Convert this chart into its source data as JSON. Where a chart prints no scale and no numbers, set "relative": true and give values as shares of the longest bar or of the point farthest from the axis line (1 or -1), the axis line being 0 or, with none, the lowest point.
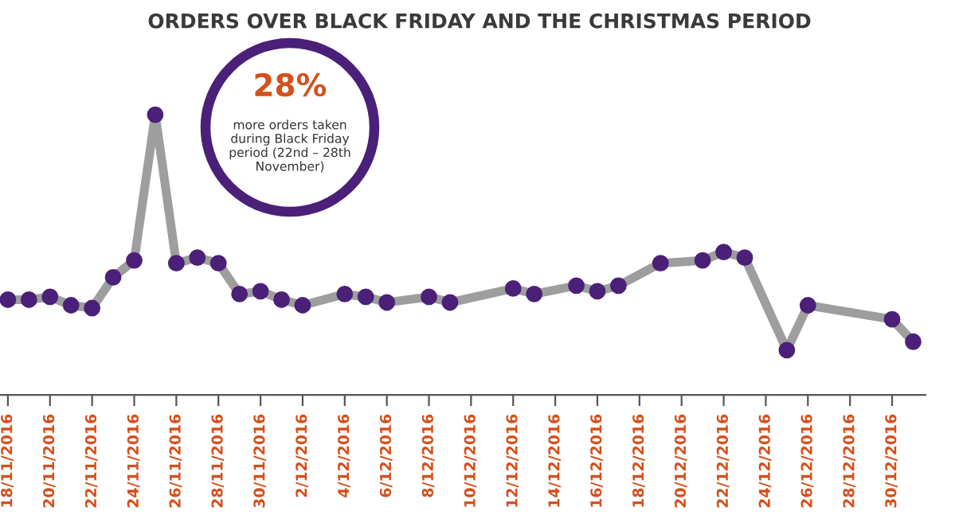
{
  "chart_data": {
    "type": "line",
    "title": "ORDERS OVER BLACK FRIDAY AND THE CHRISTMAS PERIOD",
    "relative": true,
    "marker": "circle",
    "line_style": "solid",
    "grid": false,
    "legend": false,
    "annotations": [
      "28%",
      "more orders taken during Black Friday period (22nd – 28th November)"
    ],
    "x": [
      "2016-11-18",
      "2016-11-19",
      "2016-11-20",
      "2016-11-21",
      "2016-11-22",
      "2016-11-23",
      "2016-11-24",
      "2016-11-25",
      "2016-11-26",
      "2016-11-27",
      "2016-11-28",
      "2016-11-29",
      "2016-11-30",
      "2016-12-01",
      "2016-12-02",
      "2016-12-04",
      "2016-12-05",
      "2016-12-06",
      "2016-12-08",
      "2016-12-09",
      "2016-12-12",
      "2016-12-13",
      "2016-12-15",
      "2016-12-16",
      "2016-12-17",
      "2016-12-19",
      "2016-12-21",
      "2016-12-22",
      "2016-12-23",
      "2016-12-25",
      "2016-12-26",
      "2016-12-30",
      "2016-12-31"
    ],
    "series": [
      {
        "color": "#4b2078",
        "values": [
          0.34,
          0.34,
          0.35,
          0.32,
          0.31,
          0.42,
          0.48,
          1,
          0.47,
          0.49,
          0.47,
          0.36,
          0.37,
          0.34,
          0.32,
          0.36,
          0.35,
          0.33,
          0.35,
          0.33,
          0.38,
          0.36,
          0.39,
          0.37,
          0.39,
          0.47,
          0.48,
          0.51,
          0.49,
          0.16,
          0.32,
          0.27,
          0.19
        ]
      }
    ],
    "xlim": [
      "2016-11-17T15:00",
      "2016-12-31T14:00"
    ],
    "xticks": [
      {
        "value": "2016-11-18",
        "label": "18/11/2016"
      },
      {
        "value": "2016-11-20",
        "label": "20/11/2016"
      },
      {
        "value": "2016-11-22",
        "label": "22/11/2016"
      },
      {
        "value": "2016-11-24",
        "label": "24/11/2016"
      },
      {
        "value": "2016-11-26",
        "label": "26/11/2016"
      },
      {
        "value": "2016-11-28",
        "label": "28/11/2016"
      },
      {
        "value": "2016-11-30",
        "label": "30/11/2016"
      },
      {
        "value": "2016-12-02",
        "label": "2/12/2016"
      },
      {
        "value": "2016-12-04",
        "label": "4/12/2016"
      },
      {
        "value": "2016-12-06",
        "label": "6/12/2016"
      },
      {
        "value": "2016-12-08",
        "label": "8/12/2016"
      },
      {
        "value": "2016-12-10",
        "label": "10/12/2016"
      },
      {
        "value": "2016-12-12",
        "label": "12/12/2016"
      },
      {
        "value": "2016-12-14",
        "label": "14/12/2016"
      },
      {
        "value": "2016-12-16",
        "label": "16/12/2016"
      },
      {
        "value": "2016-12-18",
        "label": "18/12/2016"
      },
      {
        "value": "2016-12-20",
        "label": "20/12/2016"
      },
      {
        "value": "2016-12-22",
        "label": "22/12/2016"
      },
      {
        "value": "2016-12-24",
        "label": "24/12/2016"
      },
      {
        "value": "2016-12-26",
        "label": "26/12/2016"
      },
      {
        "value": "2016-12-28",
        "label": "28/12/2016"
      },
      {
        "value": "2016-12-30",
        "label": "30/12/2016"
      }
    ]
  }
}
